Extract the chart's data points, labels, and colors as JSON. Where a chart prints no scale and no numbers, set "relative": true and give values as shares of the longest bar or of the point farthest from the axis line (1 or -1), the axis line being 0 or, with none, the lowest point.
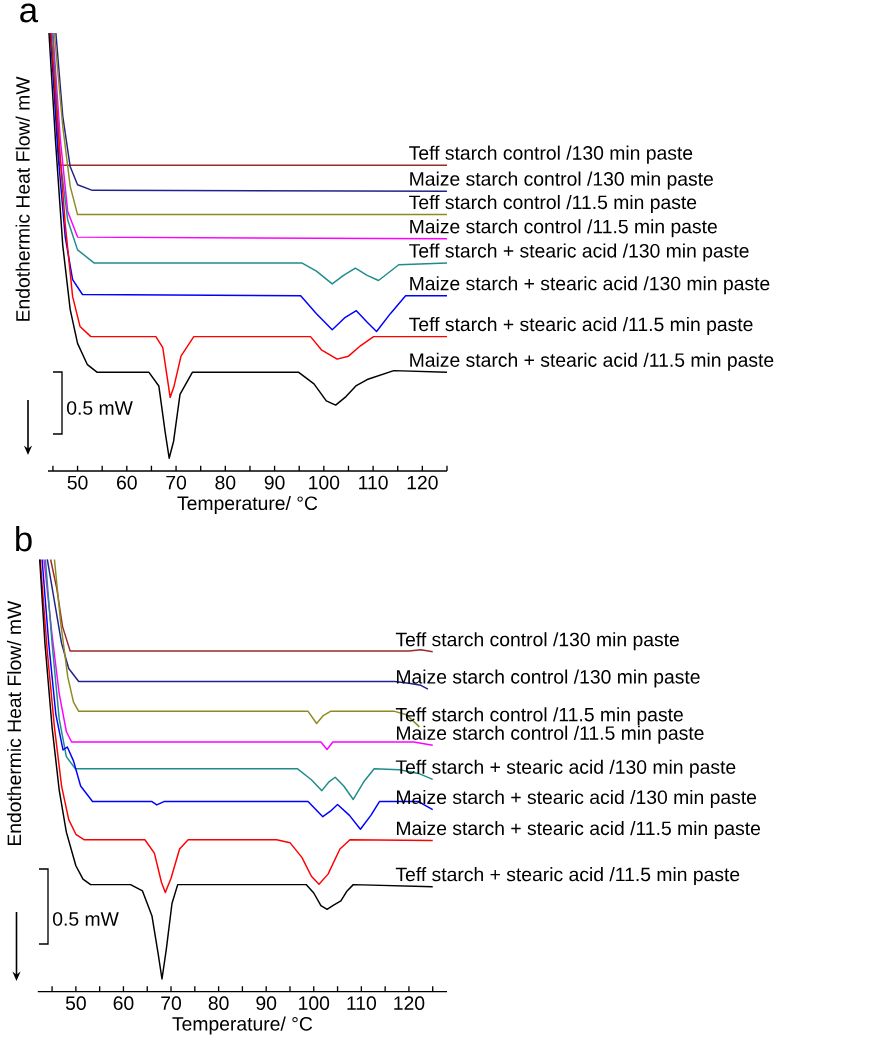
{
  "chart_data": [
    {
      "type": "line",
      "title": "a",
      "xlabel": "Temperature/ °C",
      "ylabel": "Endothermic Heat Flow/ mW",
      "relative": true,
      "annotations": [
        "0.5 mW"
      ],
      "xlim": [
        44,
        125
      ],
      "xticks": [
        {
          "value": 45,
          "label": null
        },
        50,
        {
          "value": 55,
          "label": null
        },
        60,
        {
          "value": 65,
          "label": null
        },
        70,
        {
          "value": 75,
          "label": null
        },
        80,
        {
          "value": 85,
          "label": null
        },
        90,
        {
          "value": 95,
          "label": null
        },
        100,
        {
          "value": 105,
          "label": null
        },
        110,
        {
          "value": 115,
          "label": null
        },
        120,
        {
          "value": 125,
          "label": null
        }
      ],
      "series": [
        {
          "name": "Teff starch control /130 min paste",
          "color": "#9b2a2a",
          "x": [
            44.5,
            45.5,
            46.3,
            125
          ],
          "values": [
            1.0,
            0.843,
            0.689,
            0.689
          ]
        },
        {
          "name": "Maize starch control /130 min paste",
          "color": "#22228c",
          "x": [
            45.6,
            47,
            48.5,
            50,
            53,
            125
          ],
          "values": [
            1.0,
            0.804,
            0.686,
            0.643,
            0.63,
            0.628
          ]
        },
        {
          "name": "Teff starch control /11.5 min paste",
          "color": "#8c8c1e",
          "x": [
            45.3,
            47,
            48.5,
            50,
            125
          ],
          "values": [
            1.0,
            0.78,
            0.64,
            0.573,
            0.573
          ]
        },
        {
          "name": "Maize starch control /11.5 min paste",
          "color": "#ff00ff",
          "x": [
            45.0,
            46.5,
            48,
            50,
            125
          ],
          "values": [
            1.0,
            0.75,
            0.58,
            0.52,
            0.516
          ]
        },
        {
          "name": "Teff starch + stearic acid /130 min paste",
          "color": "#1e8c8c",
          "x": [
            44.9,
            46.5,
            48,
            50,
            53.4,
            95.6,
            98.5,
            101.7,
            104,
            106.4,
            108.8,
            111.1,
            113,
            115.2,
            125
          ],
          "values": [
            1.0,
            0.7,
            0.56,
            0.49,
            0.459,
            0.459,
            0.44,
            0.41,
            0.43,
            0.447,
            0.43,
            0.418,
            0.435,
            0.455,
            0.459
          ]
        },
        {
          "name": "Maize starch + stearic acid /130 min paste",
          "color": "#0000ff",
          "x": [
            44.5,
            46,
            47.5,
            49,
            51,
            95.3,
            98.5,
            101.7,
            104.2,
            106.6,
            108.8,
            110.7,
            113.5,
            116.6,
            125
          ],
          "values": [
            1.0,
            0.72,
            0.52,
            0.42,
            0.385,
            0.382,
            0.34,
            0.302,
            0.33,
            0.347,
            0.32,
            0.298,
            0.34,
            0.382,
            0.382
          ]
        },
        {
          "name": "Teff starch + stearic acid /11.5 min paste",
          "color": "#ff0000",
          "x": [
            44.6,
            46,
            47.5,
            49,
            50.5,
            52.7,
            65.9,
            67.3,
            68.2,
            68.8,
            69.6,
            71,
            73.6,
            97.3,
            99.5,
            102.7,
            105,
            107.5,
            110.1,
            125
          ],
          "values": [
            1.0,
            0.78,
            0.55,
            0.38,
            0.31,
            0.286,
            0.286,
            0.26,
            0.19,
            0.143,
            0.17,
            0.24,
            0.286,
            0.286,
            0.255,
            0.233,
            0.24,
            0.265,
            0.286,
            0.286
          ]
        },
        {
          "name": "Maize starch + stearic acid /11.5 min paste",
          "color": "#000000",
          "x": [
            44.2,
            45.5,
            47,
            48.5,
            50,
            52,
            54,
            64.5,
            66.5,
            67.8,
            68.6,
            69.5,
            70.8,
            73.3,
            94.9,
            98,
            100.5,
            102.4,
            104.5,
            106.5,
            108.8,
            114.2,
            125
          ],
          "values": [
            1.0,
            0.75,
            0.5,
            0.35,
            0.27,
            0.22,
            0.202,
            0.202,
            0.17,
            0.06,
            0.0,
            0.04,
            0.15,
            0.202,
            0.202,
            0.175,
            0.135,
            0.125,
            0.145,
            0.17,
            0.185,
            0.206,
            0.202
          ]
        }
      ]
    },
    {
      "type": "line",
      "title": "b",
      "xlabel": "Temperature/ °C",
      "ylabel": "Endothermic Heat Flow/ mW",
      "relative": true,
      "annotations": [
        "0.5 mW"
      ],
      "xlim": [
        42,
        128
      ],
      "xticks": [
        {
          "value": 45,
          "label": null
        },
        50,
        {
          "value": 55,
          "label": null
        },
        60,
        {
          "value": 65,
          "label": null
        },
        70,
        {
          "value": 75,
          "label": null
        },
        80,
        {
          "value": 85,
          "label": null
        },
        90,
        {
          "value": 95,
          "label": null
        },
        100,
        {
          "value": 105,
          "label": null
        },
        110,
        {
          "value": 115,
          "label": null
        },
        120,
        {
          "value": 125,
          "label": null
        }
      ],
      "series": [
        {
          "name": "Teff starch control /130 min paste",
          "color": "#9b2a2a",
          "x": [
            44.7,
            46,
            47.2,
            48.8,
            120,
            122.5,
            125
          ],
          "values": [
            1.0,
            0.93,
            0.84,
            0.782,
            0.782,
            0.785,
            0.78
          ]
        },
        {
          "name": "Maize starch control /130 min paste",
          "color": "#22228c",
          "x": [
            44,
            45.5,
            47,
            48.5,
            50.6,
            117,
            120,
            122.5,
            124
          ],
          "values": [
            1.0,
            0.9,
            0.8,
            0.74,
            0.709,
            0.709,
            0.705,
            0.7,
            0.691
          ]
        },
        {
          "name": "Teff starch control /11.5 min paste",
          "color": "#8c8c1e",
          "x": [
            45.5,
            46.8,
            48.3,
            49.5,
            50.6,
            98.8,
            100.6,
            102,
            103.5,
            117,
            119.5,
            122.2
          ],
          "values": [
            1.0,
            0.85,
            0.72,
            0.66,
            0.638,
            0.638,
            0.609,
            0.628,
            0.638,
            0.638,
            0.63,
            0.601
          ]
        },
        {
          "name": "Maize starch control /11.5 min paste",
          "color": "#ff00ff",
          "x": [
            43.3,
            45,
            46.5,
            48,
            49.1,
            101.5,
            102.8,
            104,
            121,
            125
          ],
          "values": [
            1.0,
            0.82,
            0.68,
            0.59,
            0.565,
            0.565,
            0.547,
            0.565,
            0.565,
            0.557
          ]
        },
        {
          "name": "Teff starch + stearic acid /130 min paste",
          "color": "#1e8c8c",
          "x": [
            43.6,
            45,
            46.5,
            48,
            49.9,
            96.6,
            99.5,
            101.7,
            103.2,
            104.5,
            106.3,
            108.3,
            110.5,
            112.7,
            118,
            122,
            125
          ],
          "values": [
            1.0,
            0.8,
            0.62,
            0.53,
            0.501,
            0.501,
            0.475,
            0.449,
            0.47,
            0.481,
            0.46,
            0.428,
            0.47,
            0.501,
            0.499,
            0.49,
            0.476
          ]
        },
        {
          "name": "Maize starch + stearic acid /130 min paste",
          "color": "#0000ff",
          "x": [
            42.9,
            44.3,
            45.8,
            47.3,
            48.2,
            49.5,
            51,
            53.5,
            66,
            67,
            68.5,
            98.8,
            101.9,
            103.5,
            105,
            107.5,
            109.8,
            112,
            113.8,
            122,
            125
          ],
          "values": [
            1.0,
            0.8,
            0.63,
            0.546,
            0.553,
            0.52,
            0.46,
            0.423,
            0.423,
            0.415,
            0.423,
            0.423,
            0.387,
            0.4,
            0.416,
            0.39,
            0.357,
            0.39,
            0.423,
            0.423,
            0.404
          ]
        },
        {
          "name": "Maize starch + stearic acid /11.5 min paste",
          "color": "#ff0000",
          "x": [
            42.5,
            44,
            45.5,
            47,
            48.5,
            50,
            51.7,
            64.5,
            66.5,
            68,
            68.8,
            70,
            71.8,
            73.6,
            92.2,
            95,
            97.5,
            99.5,
            101.1,
            103,
            105.5,
            107.6,
            125
          ],
          "values": [
            1.0,
            0.78,
            0.6,
            0.46,
            0.38,
            0.345,
            0.332,
            0.332,
            0.3,
            0.23,
            0.206,
            0.24,
            0.31,
            0.332,
            0.332,
            0.325,
            0.29,
            0.245,
            0.226,
            0.25,
            0.31,
            0.332,
            0.33
          ]
        },
        {
          "name": "Teff starch + stearic acid /11.5 min paste",
          "color": "#000000",
          "x": [
            42.4,
            43.5,
            45,
            46.5,
            48,
            50,
            51.5,
            53.1,
            61.5,
            64,
            66,
            67.3,
            68.1,
            69,
            70.2,
            71.4,
            98.4,
            100,
            101.5,
            102.8,
            104,
            105.7,
            107,
            108.3,
            125
          ],
          "values": [
            1.0,
            0.8,
            0.6,
            0.45,
            0.35,
            0.27,
            0.238,
            0.225,
            0.225,
            0.21,
            0.15,
            0.06,
            0.0,
            0.07,
            0.18,
            0.225,
            0.225,
            0.205,
            0.175,
            0.166,
            0.175,
            0.186,
            0.21,
            0.225,
            0.22
          ]
        }
      ]
    }
  ]
}
